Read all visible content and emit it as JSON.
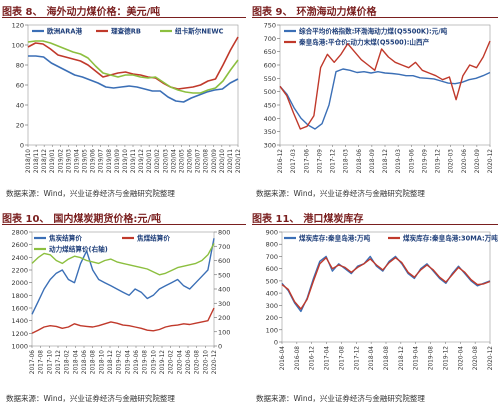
{
  "source_label": "数据来源：",
  "source_text": "Wind，兴业证券经济与金融研究院整理",
  "chart_data": [
    {
      "type": "line",
      "fig_no": "图表 8、",
      "title": "海外动力煤价格：美元/吨",
      "x_ticks": [
        "2018/10",
        "2018/11",
        "2018/12",
        "2019/01",
        "2019/02",
        "2019/03",
        "2019/04",
        "2019/05",
        "2019/06",
        "2019/07",
        "2019/08",
        "2019/09",
        "2019/10",
        "2019/11",
        "2019/12",
        "2020/01",
        "2020/02",
        "2020/03",
        "2020/04",
        "2020/05",
        "2020/06",
        "2020/07",
        "2020/08",
        "2020/09",
        "2020/10",
        "2020/11",
        "2020/12"
      ],
      "ylim": [
        0,
        120
      ],
      "y_ticks": [
        0,
        20,
        40,
        60,
        80,
        100,
        120
      ],
      "series": [
        {
          "name": "欧洲ARA港",
          "color": "#3b6fb6",
          "values": [
            89,
            89,
            88,
            82,
            78,
            74,
            70,
            68,
            65,
            62,
            58,
            57,
            58,
            59,
            58,
            56,
            54,
            54,
            48,
            44,
            43,
            47,
            50,
            53,
            55,
            56,
            62,
            66
          ]
        },
        {
          "name": "理查德RB",
          "color": "#c0392b",
          "values": [
            98,
            102,
            101,
            96,
            90,
            88,
            86,
            84,
            80,
            74,
            68,
            70,
            72,
            73,
            71,
            70,
            68,
            67,
            62,
            58,
            56,
            57,
            58,
            60,
            64,
            66,
            80,
            95,
            108
          ]
        },
        {
          "name": "纽卡斯尔NEWC",
          "color": "#8cbf3f",
          "values": [
            103,
            104,
            104,
            102,
            99,
            96,
            93,
            91,
            87,
            79,
            72,
            70,
            68,
            70,
            70,
            68,
            67,
            68,
            63,
            58,
            55,
            53,
            52,
            52,
            55,
            57,
            64,
            75,
            85
          ]
        }
      ]
    },
    {
      "type": "line",
      "fig_no": "图表 9、",
      "title": "环渤海动力煤价格",
      "x_ticks": [
        "2016-12",
        "2017-03",
        "2017-06",
        "2017-09",
        "2017-12",
        "2018-03",
        "2018-06",
        "2018-09",
        "2018-12",
        "2019-03",
        "2019-06",
        "2019-09",
        "2019-12",
        "2020-03",
        "2020-06",
        "2020-09",
        "2020-12"
      ],
      "ylim": [
        300,
        750
      ],
      "y_ticks": [
        300,
        350,
        400,
        450,
        500,
        550,
        600,
        650,
        700,
        750
      ],
      "series": [
        {
          "name": "综合平均价格指数:环渤海动力煤(Q5500K):元/吨",
          "color": "#3b6fb6",
          "values": [
            520,
            490,
            440,
            400,
            375,
            360,
            380,
            450,
            575,
            585,
            580,
            572,
            575,
            570,
            575,
            570,
            568,
            565,
            560,
            560,
            552,
            550,
            548,
            540,
            532,
            530,
            535,
            545,
            550,
            560,
            572
          ]
        },
        {
          "name": "秦皇岛港:平仓价:动力末煤(Q5500):山西产",
          "color": "#c0392b",
          "values": [
            520,
            485,
            420,
            360,
            370,
            410,
            590,
            640,
            610,
            640,
            680,
            650,
            620,
            600,
            580,
            660,
            630,
            610,
            600,
            590,
            610,
            580,
            570,
            560,
            545,
            555,
            470,
            560,
            600,
            590,
            630,
            690
          ]
        }
      ]
    },
    {
      "type": "line",
      "fig_no": "图表 10、",
      "title": "国内煤炭期货价格:元/吨",
      "x_ticks": [
        "2017-06",
        "2017-08",
        "2017-10",
        "2017-12",
        "2018-02",
        "2018-04",
        "2018-06",
        "2018-08",
        "2018-10",
        "2018-12",
        "2019-02",
        "2019-04",
        "2019-06",
        "2019-08",
        "2019-10",
        "2019-12",
        "2020-02",
        "2020-04",
        "2020-06",
        "2020-08",
        "2020-10",
        "2020-12"
      ],
      "ylim": [
        1000,
        2800
      ],
      "y_ticks": [
        1000,
        1200,
        1400,
        1600,
        1800,
        2000,
        2200,
        2400,
        2600,
        2800
      ],
      "y2lim": [
        0,
        800
      ],
      "y2_ticks": [
        0,
        100,
        200,
        300,
        400,
        500,
        600,
        700,
        800
      ],
      "y2label": "(右轴)",
      "series": [
        {
          "name": "焦炭结算价",
          "color": "#3b6fb6",
          "axis": "left",
          "values": [
            1500,
            1700,
            1900,
            2050,
            2150,
            2200,
            2050,
            2000,
            2300,
            2500,
            2200,
            2050,
            2000,
            1950,
            1900,
            1850,
            1800,
            1900,
            1850,
            1750,
            1800,
            1900,
            1950,
            2000,
            2050,
            1950,
            1900,
            2000,
            2100,
            2200,
            2700
          ]
        },
        {
          "name": "焦煤结算价",
          "color": "#c0392b",
          "axis": "left",
          "values": [
            1200,
            1250,
            1300,
            1320,
            1310,
            1280,
            1300,
            1350,
            1320,
            1310,
            1300,
            1320,
            1350,
            1380,
            1360,
            1330,
            1320,
            1300,
            1280,
            1250,
            1240,
            1260,
            1300,
            1320,
            1330,
            1350,
            1340,
            1360,
            1380,
            1400,
            1600
          ]
        },
        {
          "name": "动力煤结算价(右轴)",
          "color": "#8cbf3f",
          "axis": "right",
          "values": [
            580,
            620,
            650,
            640,
            600,
            580,
            610,
            630,
            620,
            600,
            590,
            580,
            600,
            610,
            590,
            580,
            570,
            560,
            550,
            540,
            520,
            500,
            510,
            530,
            550,
            560,
            570,
            580,
            600,
            640,
            720
          ]
        }
      ]
    },
    {
      "type": "line",
      "fig_no": "图表 11、",
      "title": "港口煤炭库存",
      "x_ticks": [
        "2016-04",
        "2016-08",
        "2016-12",
        "2017-04",
        "2017-08",
        "2017-12",
        "2018-04",
        "2018-08",
        "2018-12",
        "2019-04",
        "2019-08",
        "2019-12",
        "2020-04",
        "2020-08",
        "2020-12"
      ],
      "ylim": [
        0,
        900
      ],
      "y_ticks": [
        0,
        100,
        200,
        300,
        400,
        500,
        600,
        700,
        800,
        900
      ],
      "series": [
        {
          "name": "煤炭库存:秦皇岛港:万吨",
          "color": "#3b6fb6",
          "values": [
            480,
            420,
            320,
            250,
            360,
            520,
            660,
            700,
            580,
            640,
            600,
            560,
            620,
            640,
            700,
            620,
            580,
            660,
            700,
            640,
            560,
            520,
            600,
            640,
            580,
            520,
            480,
            560,
            620,
            560,
            500,
            460,
            480,
            500
          ]
        },
        {
          "name": "煤炭库存:秦皇岛港:30MA:万吨",
          "color": "#c0392b",
          "values": [
            470,
            430,
            330,
            270,
            350,
            500,
            640,
            690,
            600,
            630,
            610,
            570,
            610,
            640,
            680,
            630,
            590,
            650,
            690,
            650,
            570,
            530,
            590,
            630,
            590,
            530,
            490,
            550,
            610,
            570,
            510,
            470,
            475,
            495
          ]
        }
      ]
    }
  ]
}
